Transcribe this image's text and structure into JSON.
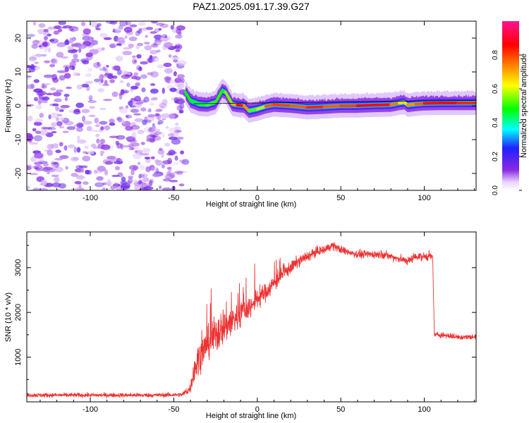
{
  "title": "PAZ1.2025.091.17.39.G27",
  "colors": {
    "snr_line": "#ee3333",
    "axis": "#000000",
    "scatter": "#8a2be2",
    "colorbar": [
      "#ffffff",
      "#8a2be2",
      "#2020ff",
      "#00ffff",
      "#00ff00",
      "#ffff00",
      "#ff8000",
      "#ff0000",
      "#ff1493"
    ]
  },
  "chart_data": [
    {
      "type": "heatmap",
      "name": "spectrogram",
      "xlabel": "Height of straight line (km)",
      "ylabel": "Frequency (Hz)",
      "xlim": [
        -138,
        131
      ],
      "ylim": [
        -25,
        25
      ],
      "xticks": [
        -100,
        -50,
        0,
        50,
        100
      ],
      "yticks": [
        -20,
        -10,
        0,
        10,
        20
      ],
      "grid": false,
      "colorbar": {
        "label": "Normalized spectral amplitude",
        "range": [
          0,
          1
        ],
        "ticks": [
          0.0,
          0.2,
          0.4,
          0.6,
          0.8
        ]
      },
      "noise_region_x": [
        -138,
        -43
      ],
      "signal_ridge": {
        "x": [
          -43,
          -40,
          -35,
          -30,
          -25,
          -21,
          -19,
          -15,
          -12,
          -8,
          -5,
          0,
          5,
          10,
          20,
          30,
          40,
          50,
          60,
          70,
          80,
          85,
          88,
          90,
          95,
          100,
          110,
          120,
          131
        ],
        "freq": [
          4.0,
          1.5,
          0.5,
          0.3,
          1.0,
          4.5,
          4.0,
          0.5,
          0.2,
          0.0,
          -1.5,
          -1.0,
          -0.2,
          0.3,
          0.0,
          -0.5,
          -0.3,
          0.0,
          0.0,
          0.2,
          0.3,
          0.8,
          1.0,
          0.2,
          0.5,
          0.7,
          0.8,
          0.8,
          0.8
        ],
        "amplitude": [
          0.5,
          0.45,
          0.5,
          0.5,
          0.55,
          0.45,
          0.5,
          0.6,
          0.8,
          0.9,
          0.55,
          0.5,
          0.65,
          0.9,
          0.7,
          0.85,
          0.8,
          0.75,
          0.85,
          0.9,
          0.8,
          0.7,
          0.6,
          0.7,
          0.75,
          0.8,
          0.9,
          0.85,
          0.8
        ]
      }
    },
    {
      "type": "line",
      "name": "snr",
      "xlabel": "Height of straight line (km)",
      "ylabel": "SNR (10 * v/v)",
      "xlim": [
        -138,
        131
      ],
      "ylim": [
        0,
        3800
      ],
      "xticks": [
        -100,
        -50,
        0,
        50,
        100
      ],
      "yticks": [
        1000,
        2000,
        3000
      ],
      "grid": false,
      "x": [
        -138,
        -120,
        -100,
        -80,
        -60,
        -45,
        -40,
        -38,
        -35,
        -30,
        -25,
        -20,
        -15,
        -10,
        -5,
        0,
        5,
        10,
        15,
        20,
        25,
        30,
        35,
        40,
        45,
        50,
        55,
        60,
        65,
        70,
        75,
        80,
        85,
        90,
        95,
        100,
        105,
        106,
        107,
        110,
        120,
        131
      ],
      "y": [
        150,
        150,
        150,
        150,
        150,
        160,
        300,
        700,
        1000,
        1300,
        1500,
        1700,
        1800,
        2000,
        2100,
        2300,
        2450,
        2650,
        2850,
        3000,
        3150,
        3250,
        3350,
        3400,
        3500,
        3400,
        3350,
        3300,
        3300,
        3300,
        3300,
        3250,
        3200,
        3150,
        3250,
        3250,
        3250,
        1500,
        1500,
        1500,
        1450,
        1450
      ],
      "noise": [
        60,
        60,
        60,
        60,
        60,
        60,
        150,
        300,
        450,
        450,
        550,
        550,
        500,
        400,
        350,
        300,
        250,
        250,
        200,
        180,
        160,
        150,
        130,
        120,
        120,
        110,
        110,
        110,
        110,
        110,
        110,
        110,
        110,
        110,
        110,
        110,
        110,
        80,
        80,
        80,
        80,
        80
      ]
    }
  ]
}
